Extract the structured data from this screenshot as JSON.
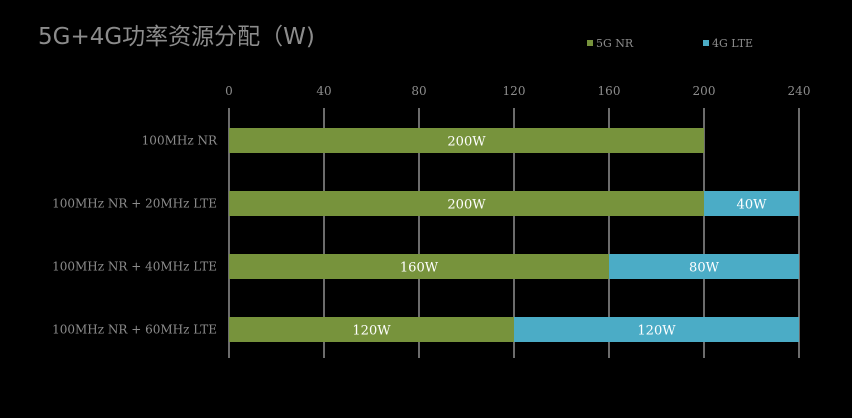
{
  "chart_data": {
    "type": "bar",
    "orientation": "horizontal",
    "stacked": true,
    "title": "5G+4G功率资源分配（W)",
    "categories": [
      "100MHz NR",
      "100MHz NR + 20MHz LTE",
      "100MHz NR + 40MHz LTE",
      "100MHz NR + 60MHz LTE"
    ],
    "series": [
      {
        "name": "5G NR",
        "color": "#77933C",
        "values": [
          200,
          200,
          160,
          120
        ],
        "labels": [
          "200W",
          "200W",
          "160W",
          "120W"
        ]
      },
      {
        "name": "4G LTE",
        "color": "#4BACC6",
        "values": [
          0,
          40,
          80,
          120
        ],
        "labels": [
          "",
          "40W",
          "80W",
          "120W"
        ]
      }
    ],
    "xlim": [
      0,
      240
    ],
    "xticks": [
      "0",
      "40",
      "80",
      "120",
      "160",
      "200",
      "240"
    ],
    "axis_position": "top",
    "grid": true,
    "legend": "top-right"
  }
}
